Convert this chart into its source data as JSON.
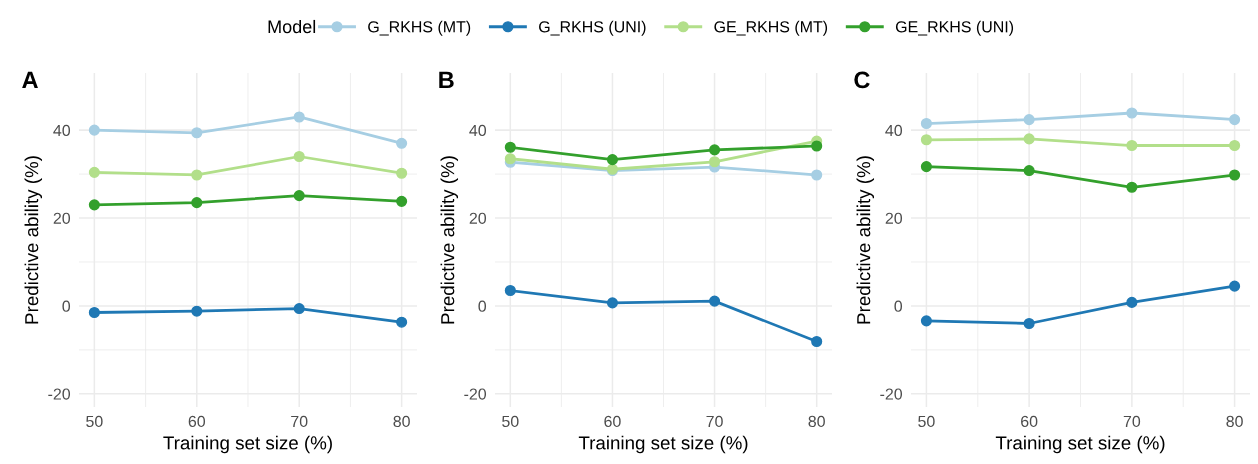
{
  "chart_data": [
    {
      "type": "line",
      "title": "A",
      "xlabel": "Training set size (%)",
      "ylabel": "Predictive ability (%)",
      "x": [
        50,
        60,
        70,
        80
      ],
      "xlim": [
        48.5,
        81.5
      ],
      "xticks": [
        50,
        60,
        70,
        80
      ],
      "ylim": [
        -23,
        53
      ],
      "yticks": [
        -20,
        0,
        20,
        40
      ],
      "grid": true,
      "marker": "circle",
      "line_style": "solid",
      "legend": "top",
      "legend_title": "Model",
      "series": [
        {
          "name": "G_RKHS (MT)",
          "color": "#a6cee3",
          "values": [
            40,
            39.4,
            43,
            37
          ]
        },
        {
          "name": "G_RKHS (UNI)",
          "color": "#1f78b4",
          "values": [
            -1.5,
            -1.2,
            -0.6,
            -3.7
          ]
        },
        {
          "name": "GE_RKHS (MT)",
          "color": "#b2df8a",
          "values": [
            30.4,
            29.8,
            34,
            30.2
          ]
        },
        {
          "name": "GE_RKHS (UNI)",
          "color": "#33a02c",
          "values": [
            23,
            23.5,
            25.1,
            23.8
          ]
        }
      ]
    },
    {
      "type": "line",
      "title": "B",
      "xlabel": "Training set size (%)",
      "ylabel": "Predictive ability (%)",
      "x": [
        50,
        60,
        70,
        80
      ],
      "xlim": [
        48.5,
        81.5
      ],
      "xticks": [
        50,
        60,
        70,
        80
      ],
      "ylim": [
        -23,
        53
      ],
      "yticks": [
        -20,
        0,
        20,
        40
      ],
      "grid": true,
      "marker": "circle",
      "line_style": "solid",
      "series": [
        {
          "color": "#a6cee3",
          "values": [
            32.7,
            30.8,
            31.6,
            29.8
          ]
        },
        {
          "color": "#1f78b4",
          "values": [
            3.5,
            0.7,
            1.1,
            -8.1
          ]
        },
        {
          "color": "#b2df8a",
          "values": [
            33.5,
            31.1,
            32.8,
            37.5
          ]
        },
        {
          "color": "#33a02c",
          "values": [
            36.1,
            33.3,
            35.5,
            36.4
          ]
        }
      ]
    },
    {
      "type": "line",
      "title": "C",
      "xlabel": "Training set size (%)",
      "ylabel": "Predictive ability (%)",
      "x": [
        50,
        60,
        70,
        80
      ],
      "xlim": [
        48.5,
        81.5
      ],
      "xticks": [
        50,
        60,
        70,
        80
      ],
      "ylim": [
        -23,
        53
      ],
      "yticks": [
        -20,
        0,
        20,
        40
      ],
      "grid": true,
      "marker": "circle",
      "line_style": "solid",
      "series": [
        {
          "color": "#a6cee3",
          "values": [
            41.5,
            42.4,
            43.9,
            42.4
          ]
        },
        {
          "color": "#1f78b4",
          "values": [
            -3.4,
            -4.0,
            0.8,
            4.5
          ]
        },
        {
          "color": "#b2df8a",
          "values": [
            37.8,
            38.0,
            36.5,
            36.5
          ]
        },
        {
          "color": "#33a02c",
          "values": [
            31.7,
            30.8,
            27.0,
            29.8
          ]
        }
      ]
    }
  ]
}
